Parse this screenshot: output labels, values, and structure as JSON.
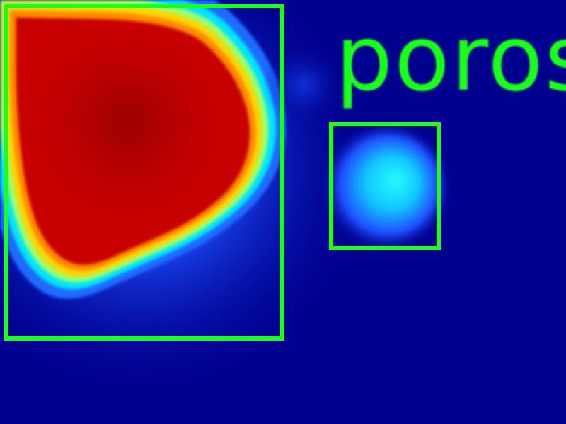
{
  "detection": {
    "label": "poros"
  },
  "colors": {
    "background": "#00008f",
    "box": "#1bff1b",
    "hot": "#c80000",
    "warm": "#ffd400",
    "cool": "#00e5ff"
  }
}
